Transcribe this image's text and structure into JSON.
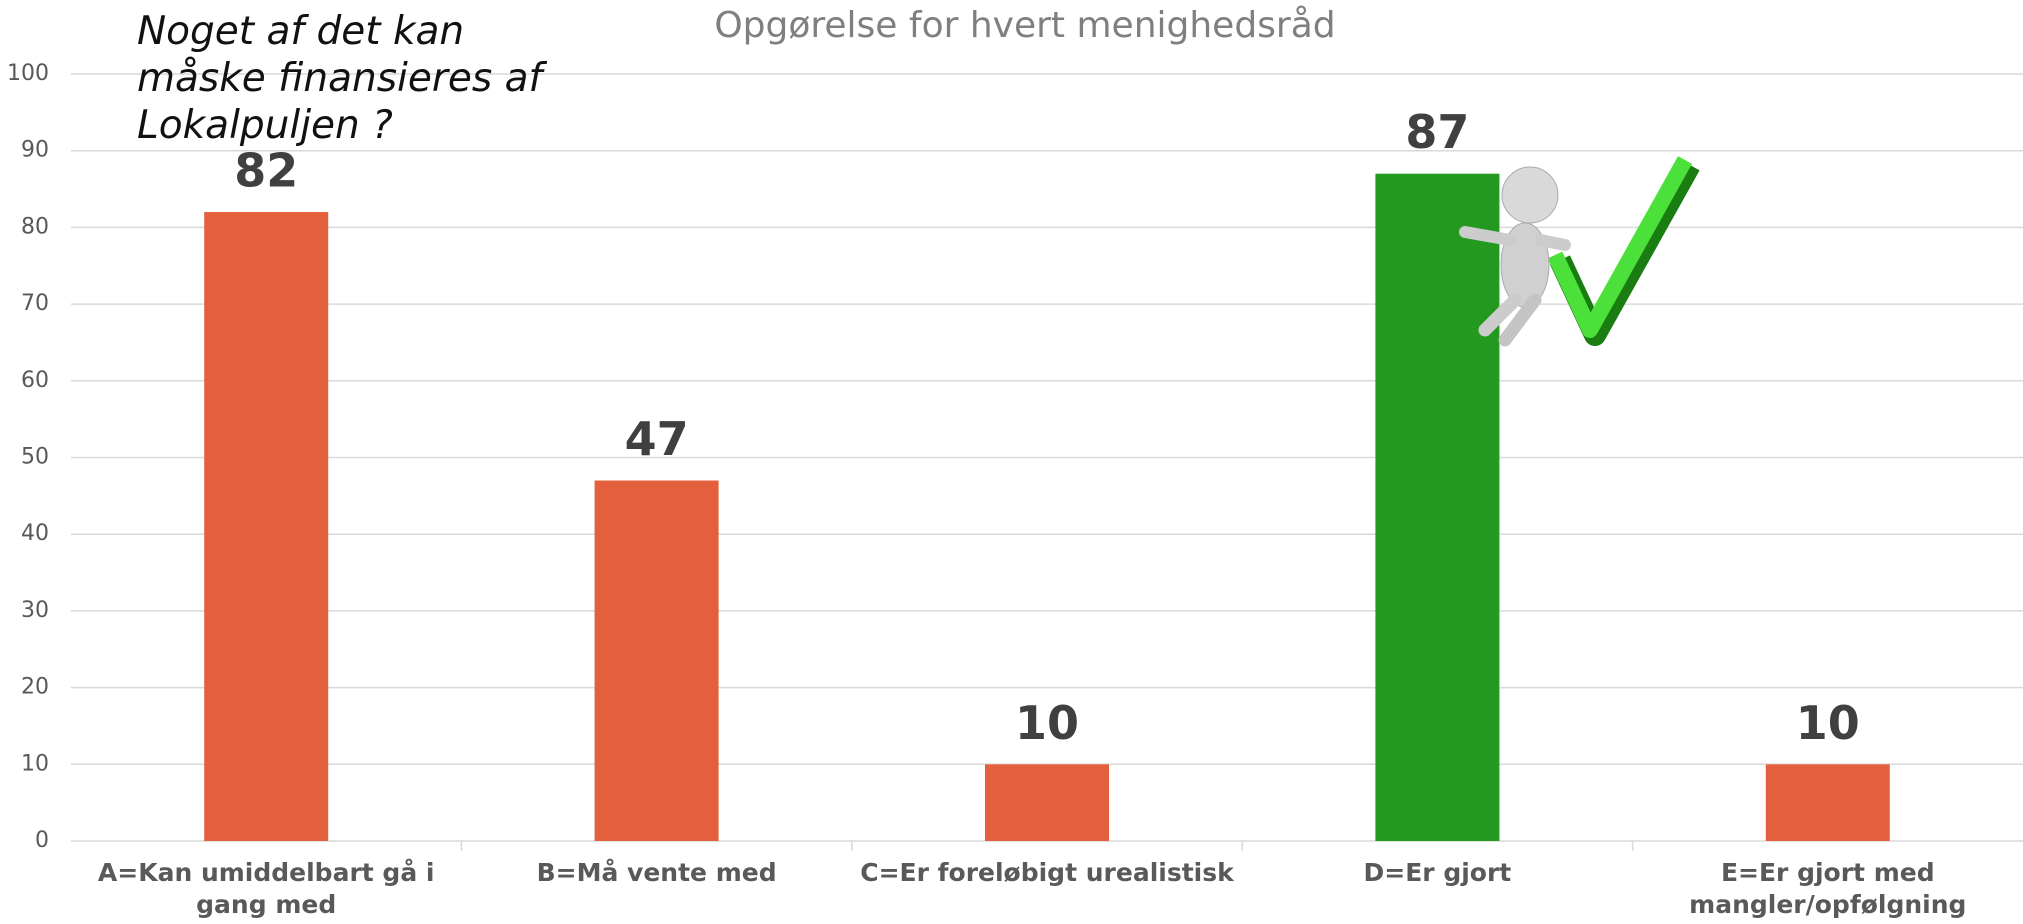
{
  "chart_data": {
    "type": "bar",
    "title": "Opgørelse for hvert menighedsråd",
    "annotation": [
      "Noget af det kan",
      "måske finansieres af",
      "Lokalpuljen ?"
    ],
    "categories": [
      "A=Kan umiddelbart gå i gang med",
      "B=Må vente med",
      "C=Er foreløbigt urealistisk",
      "D=Er gjort",
      "E=Er gjort med mangler/opfølgning"
    ],
    "values": [
      82,
      47,
      10,
      87,
      10
    ],
    "colors": [
      "#e4603c",
      "#e4603c",
      "#e4603c",
      "#24991f",
      "#e4603c"
    ],
    "ylim": [
      0,
      100
    ],
    "yticks": [
      0,
      10,
      20,
      30,
      40,
      50,
      60,
      70,
      80,
      90,
      100
    ],
    "grid": true
  }
}
